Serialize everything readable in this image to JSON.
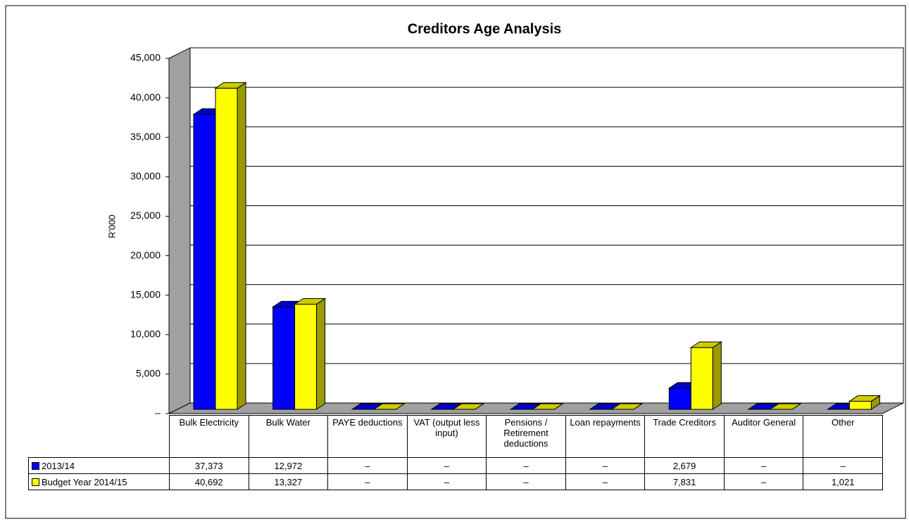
{
  "chart_data": {
    "type": "bar3d",
    "title": "Creditors Age Analysis",
    "y_label": "R'000",
    "categories": [
      "Bulk Electricity",
      "Bulk Water",
      "PAYE deductions",
      "VAT (output less input)",
      "Pensions / Retirement deductions",
      "Loan repayments",
      "Trade Creditors",
      "Auditor General",
      "Other"
    ],
    "series": [
      {
        "name": "2013/14",
        "color": "#0000ff",
        "values": [
          37373,
          12972,
          0,
          0,
          0,
          0,
          2679,
          0,
          0
        ],
        "value_labels": [
          "37,373",
          "12,972",
          "–",
          "–",
          "–",
          "–",
          "2,679",
          "–",
          "–"
        ]
      },
      {
        "name": "Budget Year 2014/15",
        "color": "#ffff00",
        "values": [
          40692,
          13327,
          0,
          0,
          0,
          0,
          7831,
          0,
          1021
        ],
        "value_labels": [
          "40,692",
          "13,327",
          "–",
          "–",
          "–",
          "–",
          "7,831",
          "–",
          "1,021"
        ]
      }
    ],
    "ylim": [
      0,
      45000
    ],
    "yticks": [
      {
        "value": 0,
        "label": "–"
      },
      {
        "value": 5000,
        "label": "5,000"
      },
      {
        "value": 10000,
        "label": "10,000"
      },
      {
        "value": 15000,
        "label": "15,000"
      },
      {
        "value": 20000,
        "label": "20,000"
      },
      {
        "value": 25000,
        "label": "25,000"
      },
      {
        "value": 30000,
        "label": "30,000"
      },
      {
        "value": 35000,
        "label": "35,000"
      },
      {
        "value": 40000,
        "label": "40,000"
      },
      {
        "value": 45000,
        "label": "45,000"
      }
    ],
    "grid": true,
    "data_table": true
  }
}
